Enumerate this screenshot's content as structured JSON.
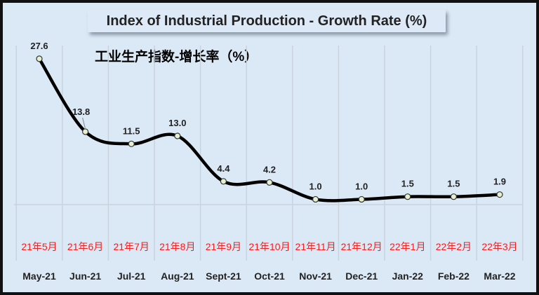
{
  "chart_data": {
    "type": "line",
    "title": "Index of Industrial Production - Growth Rate (%)",
    "subtitle": "工业生产指数-增长率（%）",
    "categories": [
      "May-21",
      "Jun-21",
      "Jul-21",
      "Aug-21",
      "Sept-21",
      "Oct-21",
      "Nov-21",
      "Dec-21",
      "Jan-22",
      "Feb-22",
      "Mar-22"
    ],
    "categories_cn": [
      "21年5月",
      "21年6月",
      "21年7月",
      "21年8月",
      "21年9月",
      "21年10月",
      "21年11月",
      "21年12月",
      "22年1月",
      "22年2月",
      "22年3月"
    ],
    "values": [
      27.6,
      13.8,
      11.5,
      13.0,
      4.4,
      4.2,
      1.0,
      1.0,
      1.5,
      1.5,
      1.9
    ],
    "labels": [
      "27.6",
      "13.8",
      "11.5",
      "13.0",
      "4.4",
      "4.2",
      "1.0",
      "1.0",
      "1.5",
      "1.5",
      "1.9"
    ],
    "ylim": [
      0,
      30
    ],
    "grid": "vertical",
    "colors": {
      "line": "#000000",
      "marker": "#e6efd0",
      "background": "#dbe9f7",
      "cn_label": "#ff1a1a"
    }
  }
}
